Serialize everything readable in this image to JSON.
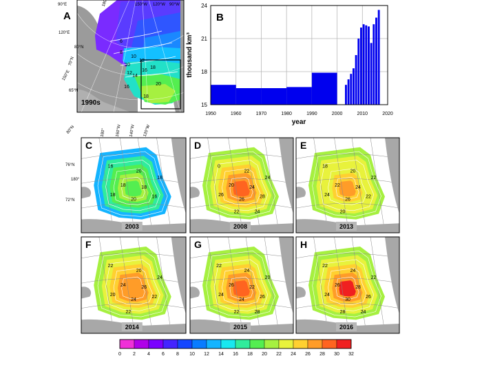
{
  "panel_a": {
    "letter": "A",
    "label": "1990s",
    "longitudes": [
      "90°E",
      "120°E",
      "150°E",
      "180°",
      "150°W",
      "120°W",
      "90°W"
    ],
    "latitudes": [
      "80°N",
      "70°N",
      "65°N"
    ],
    "contour_labels": [
      "6",
      "8",
      "10",
      "12",
      "14",
      "16",
      "18",
      "20",
      "18",
      "16",
      "12",
      "10"
    ]
  },
  "chart_data": {
    "type": "bar",
    "title": "B",
    "xlabel": "year",
    "ylabel": "thousand km³",
    "xlim": [
      1950,
      2020
    ],
    "ylim": [
      15,
      24
    ],
    "xticks": [
      1950,
      1960,
      1970,
      1980,
      1990,
      2000,
      2010,
      2020
    ],
    "yticks": [
      15,
      18,
      21,
      24
    ],
    "grid": true,
    "decadal": [
      {
        "start": 1950,
        "end": 1960,
        "value": 16.8
      },
      {
        "start": 1960,
        "end": 1970,
        "value": 16.5
      },
      {
        "start": 1970,
        "end": 1980,
        "value": 16.5
      },
      {
        "start": 1980,
        "end": 1990,
        "value": 16.6
      },
      {
        "start": 1990,
        "end": 2000,
        "value": 17.9
      }
    ],
    "annual": {
      "years": [
        2003,
        2004,
        2005,
        2006,
        2007,
        2008,
        2009,
        2010,
        2011,
        2012,
        2013,
        2014,
        2015,
        2016
      ],
      "values": [
        16.8,
        17.3,
        17.8,
        18.3,
        19.5,
        21.0,
        22.0,
        22.3,
        22.2,
        22.1,
        20.6,
        22.3,
        22.9,
        23.6
      ]
    },
    "bar_color": "#0000ee"
  },
  "map_lat_labels": [
    "80°N",
    "76°N",
    "72°N"
  ],
  "map_lon_labels": [
    "180°",
    "160°W",
    "140°W",
    "120°W"
  ],
  "map_side_label": "180°",
  "maps": [
    {
      "letter": "C",
      "year": "2003",
      "contours": [
        "16",
        "20",
        "18",
        "18",
        "20",
        "16",
        "18",
        "18"
      ]
    },
    {
      "letter": "D",
      "year": "2008",
      "contours": [
        "0",
        "22",
        "20",
        "24",
        "26",
        "28",
        "26",
        "24",
        "22",
        "24"
      ]
    },
    {
      "letter": "E",
      "year": "2013",
      "contours": [
        "18",
        "20",
        "22",
        "24",
        "26",
        "22",
        "24",
        "22",
        "20"
      ]
    },
    {
      "letter": "F",
      "year": "2014",
      "contours": [
        "22",
        "20",
        "24",
        "26",
        "24",
        "22",
        "20",
        "24",
        "22"
      ]
    },
    {
      "letter": "G",
      "year": "2015",
      "contours": [
        "22",
        "24",
        "26",
        "22",
        "24",
        "26",
        "24",
        "20",
        "22",
        "28"
      ]
    },
    {
      "letter": "H",
      "year": "2016",
      "contours": [
        "22",
        "24",
        "26",
        "28",
        "30",
        "26",
        "24",
        "22",
        "28",
        "24"
      ]
    }
  ],
  "colorbar": {
    "ticks": [
      "0",
      "2",
      "4",
      "6",
      "8",
      "10",
      "12",
      "14",
      "16",
      "18",
      "20",
      "22",
      "24",
      "26",
      "28",
      "30",
      "32"
    ],
    "colors": [
      "#f030d8",
      "#b000e8",
      "#7a00ff",
      "#4424ff",
      "#1446ff",
      "#0a7cff",
      "#14b4ff",
      "#18e8f0",
      "#30ec9c",
      "#54ee50",
      "#a6f040",
      "#e8f23c",
      "#ffd030",
      "#ff9c28",
      "#ff6420",
      "#f02020"
    ]
  }
}
